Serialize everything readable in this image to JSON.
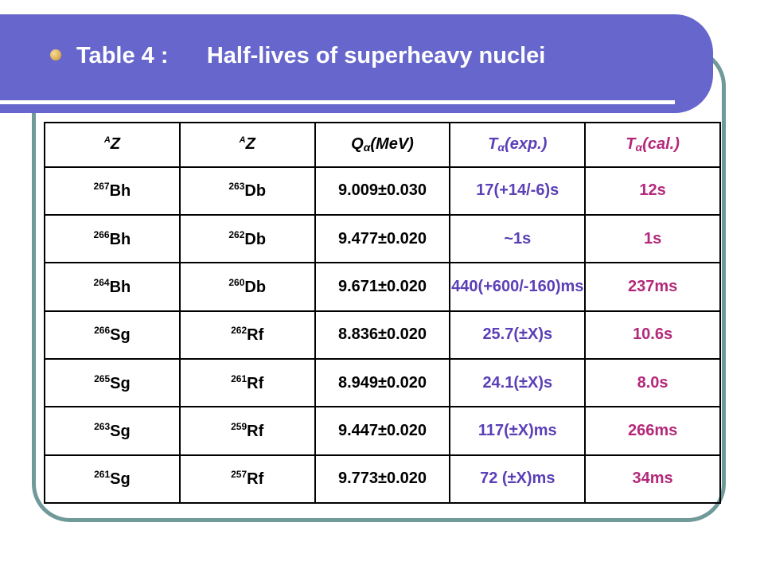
{
  "slide": {
    "title": "Table 4 :      Half-lives of superheavy nuclei"
  },
  "colors": {
    "header_bg": "#6666cc",
    "frame": "#6f9a99",
    "col_texp": "#5a3fb6",
    "col_tcal": "#b4287a"
  },
  "table": {
    "headers": [
      {
        "sup": "A",
        "main": "Z"
      },
      {
        "sup": "A",
        "main": "Z"
      },
      {
        "pre": "Q",
        "sub": "α",
        "post": "(MeV)"
      },
      {
        "pre": "T",
        "sub": "α",
        "post": "(exp.)"
      },
      {
        "pre": "T",
        "sub": "α",
        "post": "(cal.)"
      }
    ],
    "rows": [
      {
        "parent": {
          "mass": "267",
          "el": "Bh"
        },
        "daughter": {
          "mass": "263",
          "el": "Db"
        },
        "q": "9.009±0.030",
        "texp": "17(+14/-6)s",
        "tcal": "12s"
      },
      {
        "parent": {
          "mass": "266",
          "el": "Bh"
        },
        "daughter": {
          "mass": "262",
          "el": "Db"
        },
        "q": "9.477±0.020",
        "texp": "~1s",
        "tcal": "1s"
      },
      {
        "parent": {
          "mass": "264",
          "el": "Bh"
        },
        "daughter": {
          "mass": "260",
          "el": "Db"
        },
        "q": "9.671±0.020",
        "texp": "440(+600/-160)ms",
        "tcal": "237ms"
      },
      {
        "parent": {
          "mass": "266",
          "el": "Sg"
        },
        "daughter": {
          "mass": "262",
          "el": "Rf"
        },
        "q": "8.836±0.020",
        "texp": "25.7(±X)s",
        "tcal": "10.6s"
      },
      {
        "parent": {
          "mass": "265",
          "el": "Sg"
        },
        "daughter": {
          "mass": "261",
          "el": "Rf"
        },
        "q": "8.949±0.020",
        "texp": "24.1(±X)s",
        "tcal": "8.0s"
      },
      {
        "parent": {
          "mass": "263",
          "el": "Sg"
        },
        "daughter": {
          "mass": "259",
          "el": "Rf"
        },
        "q": "9.447±0.020",
        "texp": "117(±X)ms",
        "tcal": "266ms"
      },
      {
        "parent": {
          "mass": "261",
          "el": "Sg"
        },
        "daughter": {
          "mass": "257",
          "el": "Rf"
        },
        "q": "9.773±0.020",
        "texp": "72 (±X)ms",
        "tcal": "34ms"
      }
    ]
  }
}
